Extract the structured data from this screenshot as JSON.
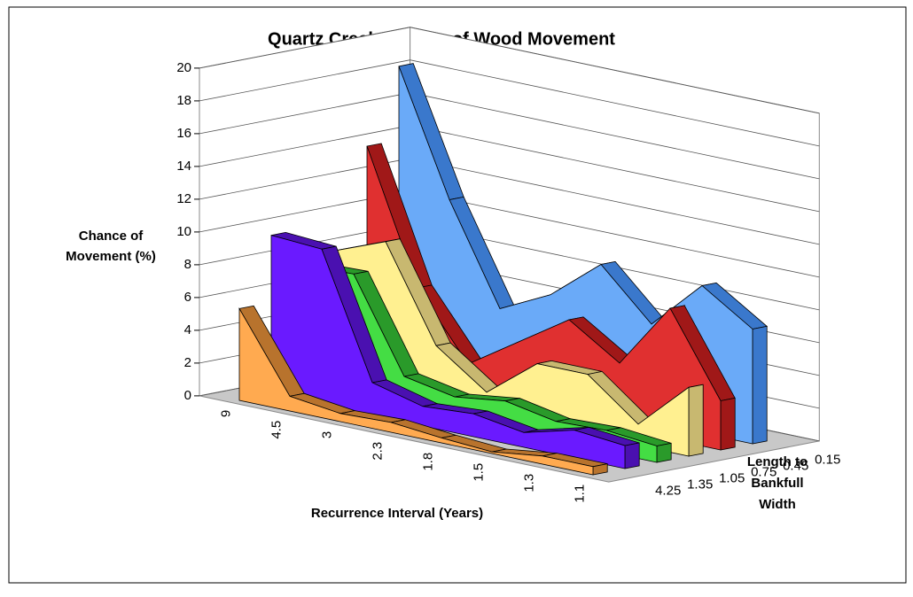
{
  "chart_data": {
    "type": "ribbon3d",
    "title": "Quartz Creek Chance of Wood Movement",
    "y_label": [
      "Chance of",
      "Movement (%)"
    ],
    "x_label": "Recurrence Interval (Years)",
    "z_label": [
      "Length to",
      "Bankfull",
      "Width"
    ],
    "categories": [
      "9",
      "4.5",
      "3",
      "2.3",
      "1.8",
      "1.5",
      "1.3",
      "1.1"
    ],
    "series": [
      {
        "name": "0.15",
        "color": "#6aaaf8",
        "edge": "#3a78cc",
        "values": [
          18.5,
          11,
          5,
          6.5,
          9,
          6,
          9,
          7
        ]
      },
      {
        "name": "0.45",
        "color": "#e03030",
        "edge": "#a01818",
        "values": [
          14,
          6,
          2,
          4,
          6,
          4,
          8,
          3
        ]
      },
      {
        "name": "0.75",
        "color": "#fff090",
        "edge": "#c8b870",
        "values": [
          8,
          9.2,
          3.5,
          1.3,
          3.7,
          3.7,
          1.3,
          4.2
        ]
      },
      {
        "name": "1.05",
        "color": "#44dd44",
        "edge": "#2a9a2a",
        "values": [
          7.5,
          7.6,
          2,
          1.4,
          1.8,
          1.2,
          1.3,
          1
        ]
      },
      {
        "name": "1.35",
        "color": "#6a1aff",
        "edge": "#4a10b0",
        "values": [
          9.7,
          9.5,
          2,
          1.2,
          1.4,
          0.9,
          1.7,
          1.4
        ]
      },
      {
        "name": "4.25",
        "color": "#ffaa50",
        "edge": "#b8732d",
        "values": [
          5.6,
          0.9,
          0.5,
          0.6,
          0.3,
          0.1,
          0.5,
          0.5
        ]
      }
    ],
    "ylim": [
      0,
      20
    ],
    "yticks": [
      0,
      2,
      4,
      6,
      8,
      10,
      12,
      14,
      16,
      18,
      20
    ],
    "grid": true
  }
}
